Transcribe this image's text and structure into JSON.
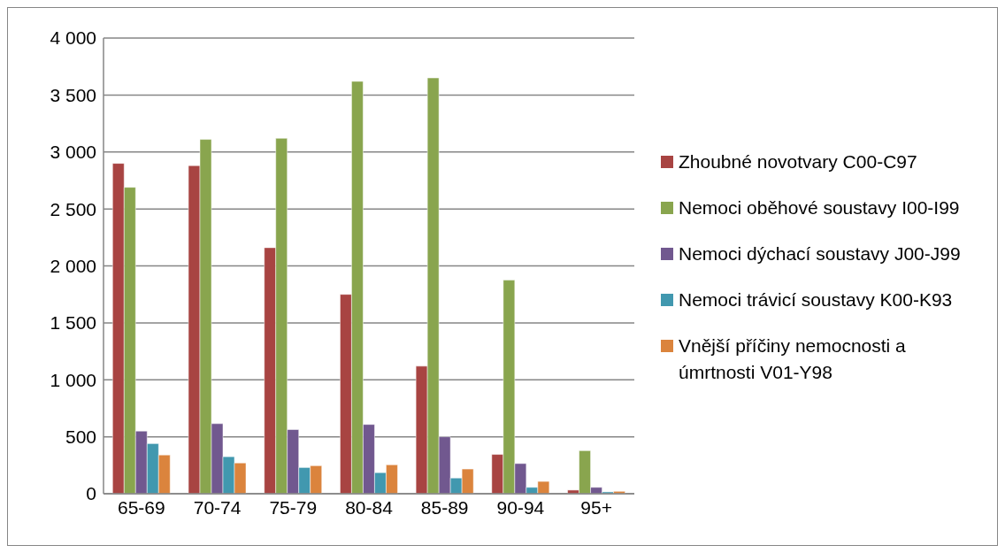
{
  "chart_data": {
    "type": "bar",
    "categories": [
      "65-69",
      "70-74",
      "75-79",
      "80-84",
      "85-89",
      "90-94",
      "95+"
    ],
    "series": [
      {
        "name": "Zhoubné novotvary C00-C97",
        "color": "#a84442",
        "values": [
          2900,
          2880,
          2160,
          1750,
          1120,
          345,
          32
        ]
      },
      {
        "name": "Nemoci oběhové soustavy I00-I99",
        "color": "#89a54e",
        "values": [
          2690,
          3110,
          3120,
          3620,
          3650,
          1875,
          378
        ]
      },
      {
        "name": "Nemoci dýchací soustavy J00-J99",
        "color": "#71588f",
        "values": [
          550,
          615,
          563,
          608,
          500,
          265,
          56
        ]
      },
      {
        "name": "Nemoci trávicí soustavy K00-K93",
        "color": "#4198af",
        "values": [
          440,
          325,
          230,
          185,
          138,
          56,
          16
        ]
      },
      {
        "name": "Vnější příčiny nemocnosti a úmrtnosti V01-Y98",
        "color": "#db843d",
        "values": [
          340,
          270,
          246,
          254,
          217,
          108,
          21
        ]
      }
    ],
    "ylim": [
      0,
      4000
    ],
    "yticks": [
      {
        "value": 0,
        "label": "0"
      },
      {
        "value": 500,
        "label": "500"
      },
      {
        "value": 1000,
        "label": "1 000"
      },
      {
        "value": 1500,
        "label": "1 500"
      },
      {
        "value": 2000,
        "label": "2 000"
      },
      {
        "value": 2500,
        "label": "2 500"
      },
      {
        "value": 3000,
        "label": "3 000"
      },
      {
        "value": 3500,
        "label": "3 500"
      },
      {
        "value": 4000,
        "label": "4 000"
      }
    ],
    "grid": "y",
    "legend": "right"
  }
}
